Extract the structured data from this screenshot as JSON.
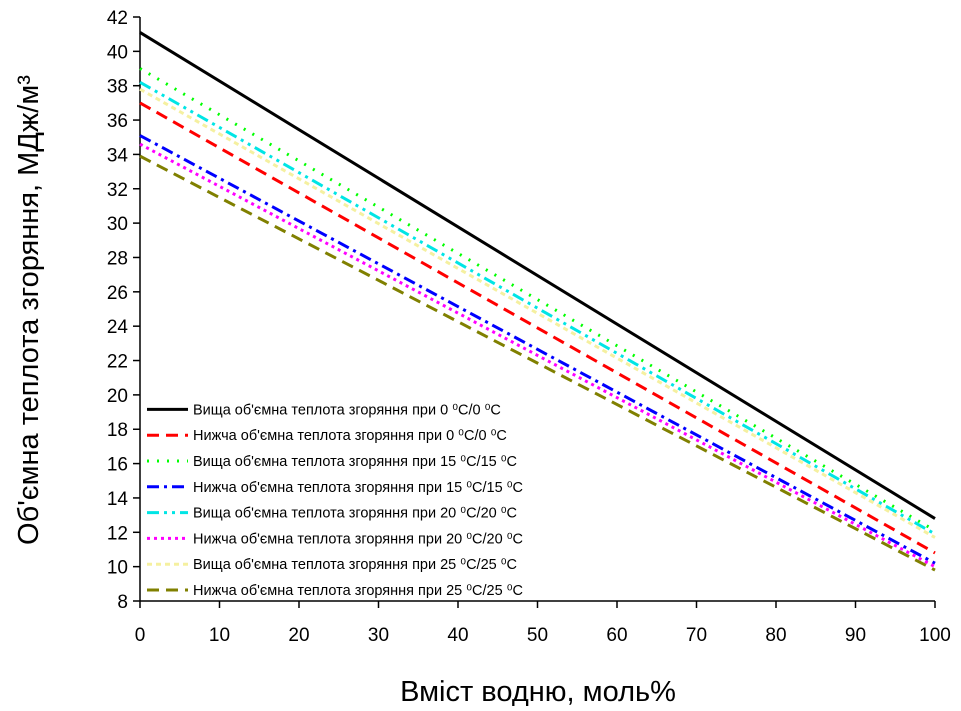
{
  "chart_data": {
    "type": "line",
    "x_label": "Вміст водню, моль%",
    "y_label": "Об'ємна теплота згоряння, МДж/м³",
    "x": [
      0,
      100
    ],
    "xlim": [
      0,
      100
    ],
    "xticks": [
      0,
      10,
      20,
      30,
      40,
      50,
      60,
      70,
      80,
      90,
      100
    ],
    "ylim": [
      8,
      42
    ],
    "yticks": [
      8,
      10,
      12,
      14,
      16,
      18,
      20,
      22,
      24,
      26,
      28,
      30,
      32,
      34,
      36,
      38,
      40,
      42
    ],
    "legend": "lower-left",
    "series": [
      {
        "name": "Вища об'ємна теплота згоряння при 0 ⁰C/0 ⁰C",
        "color": "#000000",
        "style": "solid",
        "values": [
          41.1,
          12.8
        ]
      },
      {
        "name": "Нижча об'ємна теплота згоряння при 0 ⁰C/0 ⁰C",
        "color": "#ff0000",
        "style": "dash",
        "values": [
          37.0,
          10.8
        ]
      },
      {
        "name": "Вища об'ємна теплота згоряння при 15 ⁰C/15 ⁰C",
        "color": "#00ff00",
        "style": "dot",
        "values": [
          39.0,
          12.1
        ]
      },
      {
        "name": "Нижча об'ємна теплота згоряння при 15 ⁰C/15 ⁰C",
        "color": "#0000ff",
        "style": "dashdot",
        "values": [
          35.1,
          10.2
        ]
      },
      {
        "name": "Вища об'ємна теплота згоряння при 20 ⁰C/20 ⁰C",
        "color": "#00e5e5",
        "style": "dashdotdot",
        "values": [
          38.2,
          11.9
        ]
      },
      {
        "name": "Нижча об'ємна теплота згоряння при 20 ⁰C/20 ⁰C",
        "color": "#ff00ff",
        "style": "shortdot",
        "values": [
          34.6,
          10.0
        ]
      },
      {
        "name": "Вища об'ємна теплота згоряння при 25 ⁰C/25 ⁰C",
        "color": "#f5f0a0",
        "style": "shortdash",
        "values": [
          37.8,
          11.7
        ]
      },
      {
        "name": "Нижча об'ємна теплота згоряння при 25 ⁰C/25 ⁰C",
        "color": "#808000",
        "style": "dash",
        "values": [
          33.9,
          9.8
        ]
      }
    ]
  }
}
